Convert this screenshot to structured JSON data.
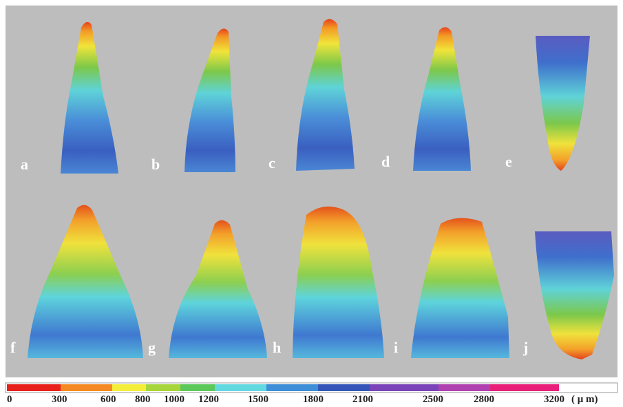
{
  "panels": [
    "a",
    "b",
    "c",
    "d",
    "e",
    "f",
    "g",
    "h",
    "i",
    "j"
  ],
  "colorbar": {
    "ticks": [
      "0",
      "300",
      "600",
      "800",
      "1000",
      "1200",
      "1500",
      "1800",
      "2100",
      "2500",
      "2800",
      "3200"
    ],
    "unit": "( μ m)"
  }
}
